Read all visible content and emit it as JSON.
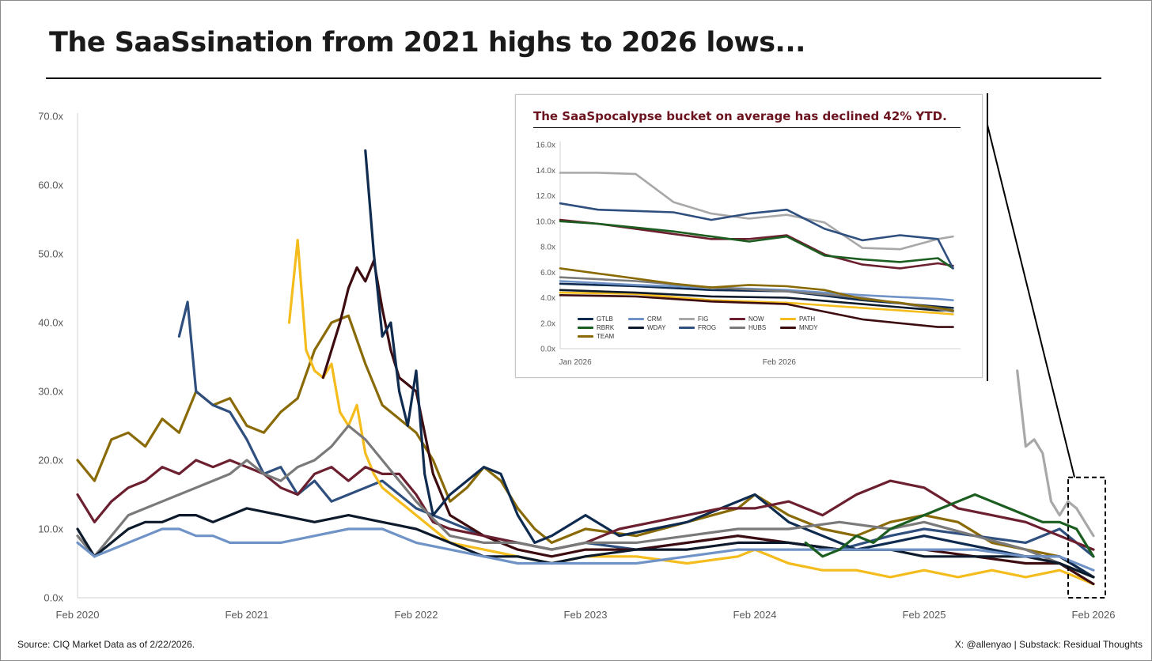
{
  "title": "The SaaSsination from 2021 highs to 2026 lows...",
  "source": "Source: CIQ Market Data as of 2/22/2026.",
  "credit": "X: @allenyao | Substack: Residual Thoughts",
  "colors": {
    "GTLB": "#0f2b4f",
    "CRM": "#6f93c6",
    "FIG": "#a8a8a8",
    "NOW": "#6b1f2f",
    "PATH": "#f4bc1c",
    "RBRK": "#1b5e20",
    "WDAY": "#0c1a2b",
    "FROG": "#2f4f7f",
    "HUBS": "#7a7a7a",
    "MNDY": "#3d0c10",
    "TEAM": "#8a6a05"
  },
  "chart_data": [
    {
      "type": "line",
      "title": "The SaaSsination from 2021 highs to 2026 lows...",
      "xlabel": "",
      "ylabel": "",
      "x_ticks": [
        "Feb 2020",
        "Feb 2021",
        "Feb 2022",
        "Feb 2023",
        "Feb 2024",
        "Feb 2025",
        "Feb 2026"
      ],
      "y_ticks": [
        "0.0x",
        "10.0x",
        "20.0x",
        "30.0x",
        "40.0x",
        "50.0x",
        "60.0x",
        "70.0x"
      ],
      "ylim": [
        0,
        70
      ],
      "xlim": [
        2020.0,
        2026.0
      ],
      "grid": false,
      "legend": "none",
      "series": [
        {
          "name": "TEAM",
          "x": [
            2020.0,
            2020.1,
            2020.2,
            2020.3,
            2020.4,
            2020.5,
            2020.6,
            2020.7,
            2020.8,
            2020.9,
            2021.0,
            2021.1,
            2021.2,
            2021.3,
            2021.4,
            2021.5,
            2021.6,
            2021.7,
            2021.8,
            2021.9,
            2022.0,
            2022.1,
            2022.2,
            2022.3,
            2022.4,
            2022.5,
            2022.6,
            2022.7,
            2022.8,
            2023.0,
            2023.3,
            2023.6,
            2023.9,
            2024.0,
            2024.2,
            2024.4,
            2024.6,
            2024.8,
            2025.0,
            2025.2,
            2025.4,
            2025.6,
            2025.8,
            2026.0
          ],
          "y": [
            20,
            17,
            23,
            24,
            22,
            26,
            24,
            30,
            28,
            29,
            25,
            24,
            27,
            29,
            36,
            40,
            41,
            34,
            28,
            26,
            24,
            20,
            14,
            16,
            19,
            17,
            13,
            10,
            8,
            10,
            9,
            11,
            13,
            15,
            12,
            10,
            9,
            11,
            12,
            11,
            8,
            7,
            6,
            3
          ]
        },
        {
          "name": "FROG",
          "x": [
            2020.6,
            2020.65,
            2020.7,
            2020.8,
            2020.9,
            2021.0,
            2021.1,
            2021.2,
            2021.3,
            2021.4,
            2021.5,
            2021.6,
            2021.7,
            2021.8,
            2021.9,
            2022.0,
            2022.2,
            2022.4,
            2022.6,
            2022.8,
            2023.0,
            2023.3,
            2023.6,
            2023.9,
            2024.2,
            2024.5,
            2024.8,
            2025.0,
            2025.3,
            2025.6,
            2025.8,
            2026.0
          ],
          "y": [
            38,
            43,
            30,
            28,
            27,
            23,
            18,
            19,
            15,
            17,
            14,
            15,
            16,
            17,
            15,
            13,
            11,
            9,
            8,
            7,
            8,
            7,
            8,
            9,
            8,
            7,
            9,
            10,
            9,
            8,
            10,
            6
          ]
        },
        {
          "name": "PATH",
          "x": [
            2021.25,
            2021.3,
            2021.35,
            2021.4,
            2021.45,
            2021.5,
            2021.55,
            2021.6,
            2021.65,
            2021.7,
            2021.75,
            2021.8,
            2021.9,
            2022.0,
            2022.2,
            2022.4,
            2022.6,
            2022.8,
            2023.0,
            2023.3,
            2023.6,
            2023.9,
            2024.0,
            2024.2,
            2024.4,
            2024.6,
            2024.8,
            2025.0,
            2025.2,
            2025.4,
            2025.6,
            2025.8,
            2026.0
          ],
          "y": [
            40,
            52,
            36,
            33,
            32,
            34,
            27,
            25,
            28,
            21,
            18,
            16,
            14,
            12,
            8,
            7,
            6,
            5,
            6,
            6,
            5,
            6,
            7,
            5,
            4,
            4,
            3,
            4,
            3,
            4,
            3,
            4,
            2
          ]
        },
        {
          "name": "MNDY",
          "x": [
            2021.45,
            2021.5,
            2021.55,
            2021.6,
            2021.65,
            2021.7,
            2021.75,
            2021.8,
            2021.85,
            2021.9,
            2022.0,
            2022.1,
            2022.2,
            2022.4,
            2022.6,
            2022.8,
            2023.0,
            2023.3,
            2023.6,
            2023.9,
            2024.2,
            2024.5,
            2024.8,
            2025.0,
            2025.3,
            2025.6,
            2025.8,
            2026.0
          ],
          "y": [
            32,
            36,
            40,
            45,
            48,
            46,
            49,
            42,
            36,
            32,
            30,
            18,
            12,
            9,
            7,
            6,
            7,
            7,
            8,
            9,
            8,
            7,
            7,
            7,
            6,
            5,
            5,
            2
          ]
        },
        {
          "name": "GTLB",
          "x": [
            2021.7,
            2021.75,
            2021.8,
            2021.85,
            2021.9,
            2021.95,
            2022.0,
            2022.05,
            2022.1,
            2022.2,
            2022.3,
            2022.4,
            2022.5,
            2022.6,
            2022.7,
            2022.8,
            2023.0,
            2023.2,
            2023.4,
            2023.6,
            2023.8,
            2024.0,
            2024.2,
            2024.4,
            2024.6,
            2024.8,
            2025.0,
            2025.2,
            2025.4,
            2025.6,
            2025.8,
            2026.0
          ],
          "y": [
            65,
            50,
            38,
            40,
            30,
            25,
            33,
            18,
            12,
            15,
            17,
            19,
            18,
            12,
            8,
            9,
            12,
            9,
            10,
            11,
            13,
            15,
            11,
            9,
            7,
            8,
            9,
            8,
            7,
            6,
            6,
            3
          ]
        },
        {
          "name": "NOW",
          "x": [
            2020.0,
            2020.1,
            2020.2,
            2020.3,
            2020.4,
            2020.5,
            2020.6,
            2020.7,
            2020.8,
            2020.9,
            2021.0,
            2021.1,
            2021.2,
            2021.3,
            2021.4,
            2021.5,
            2021.6,
            2021.7,
            2021.8,
            2021.9,
            2022.0,
            2022.1,
            2022.2,
            2022.4,
            2022.6,
            2022.8,
            2023.0,
            2023.2,
            2023.4,
            2023.6,
            2023.8,
            2024.0,
            2024.2,
            2024.4,
            2024.6,
            2024.8,
            2025.0,
            2025.2,
            2025.4,
            2025.6,
            2025.8,
            2026.0
          ],
          "y": [
            15,
            11,
            14,
            16,
            17,
            19,
            18,
            20,
            19,
            20,
            19,
            18,
            16,
            15,
            18,
            19,
            17,
            19,
            18,
            18,
            15,
            11,
            10,
            9,
            8,
            7,
            8,
            10,
            11,
            12,
            13,
            13,
            14,
            12,
            15,
            17,
            16,
            13,
            12,
            11,
            9,
            7
          ]
        },
        {
          "name": "HUBS",
          "x": [
            2020.0,
            2020.1,
            2020.2,
            2020.3,
            2020.4,
            2020.5,
            2020.6,
            2020.7,
            2020.8,
            2020.9,
            2021.0,
            2021.1,
            2021.2,
            2021.3,
            2021.4,
            2021.5,
            2021.6,
            2021.7,
            2021.8,
            2021.9,
            2022.0,
            2022.2,
            2022.4,
            2022.6,
            2022.8,
            2023.0,
            2023.3,
            2023.6,
            2023.9,
            2024.2,
            2024.5,
            2024.8,
            2025.0,
            2025.3,
            2025.6,
            2025.8,
            2026.0
          ],
          "y": [
            9,
            6,
            9,
            12,
            13,
            14,
            15,
            16,
            17,
            18,
            20,
            18,
            17,
            19,
            20,
            22,
            25,
            23,
            20,
            17,
            14,
            9,
            8,
            8,
            7,
            8,
            8,
            9,
            10,
            10,
            11,
            10,
            11,
            9,
            7,
            5,
            3
          ]
        },
        {
          "name": "WDAY",
          "x": [
            2020.0,
            2020.1,
            2020.2,
            2020.3,
            2020.4,
            2020.5,
            2020.6,
            2020.7,
            2020.8,
            2020.9,
            2021.0,
            2021.2,
            2021.4,
            2021.6,
            2021.8,
            2022.0,
            2022.2,
            2022.4,
            2022.6,
            2022.8,
            2023.0,
            2023.3,
            2023.6,
            2023.9,
            2024.2,
            2024.5,
            2024.8,
            2025.0,
            2025.3,
            2025.6,
            2025.8,
            2026.0
          ],
          "y": [
            10,
            6,
            8,
            10,
            11,
            11,
            12,
            12,
            11,
            12,
            13,
            12,
            11,
            12,
            11,
            10,
            8,
            6,
            6,
            5,
            6,
            7,
            7,
            8,
            8,
            7,
            7,
            6,
            6,
            6,
            5,
            3
          ]
        },
        {
          "name": "CRM",
          "x": [
            2020.0,
            2020.1,
            2020.2,
            2020.3,
            2020.4,
            2020.5,
            2020.6,
            2020.7,
            2020.8,
            2020.9,
            2021.0,
            2021.2,
            2021.4,
            2021.6,
            2021.8,
            2022.0,
            2022.2,
            2022.4,
            2022.6,
            2022.8,
            2023.0,
            2023.3,
            2023.6,
            2023.9,
            2024.2,
            2024.5,
            2024.8,
            2025.0,
            2025.3,
            2025.6,
            2025.8,
            2026.0
          ],
          "y": [
            8,
            6,
            7,
            8,
            9,
            10,
            10,
            9,
            9,
            8,
            8,
            8,
            9,
            10,
            10,
            8,
            7,
            6,
            5,
            5,
            5,
            5,
            6,
            7,
            7,
            7,
            7,
            7,
            7,
            6,
            6,
            4
          ]
        },
        {
          "name": "RBRK",
          "x": [
            2024.3,
            2024.4,
            2024.5,
            2024.6,
            2024.7,
            2024.8,
            2024.9,
            2025.0,
            2025.1,
            2025.2,
            2025.3,
            2025.4,
            2025.5,
            2025.6,
            2025.7,
            2025.8,
            2025.9,
            2026.0
          ],
          "y": [
            8,
            6,
            7,
            9,
            8,
            10,
            11,
            12,
            13,
            14,
            15,
            14,
            13,
            12,
            11,
            11,
            10,
            6
          ]
        },
        {
          "name": "FIG",
          "x": [
            2025.55,
            2025.6,
            2025.65,
            2025.7,
            2025.75,
            2025.8,
            2025.85,
            2025.9,
            2025.95,
            2026.0
          ],
          "y": [
            33,
            22,
            23,
            21,
            14,
            12,
            14,
            13,
            11,
            9
          ]
        }
      ]
    },
    {
      "type": "line",
      "title": "The SaaSpocalypse bucket on average has declined 42% YTD.",
      "xlabel": "",
      "ylabel": "",
      "x_ticks": [
        "Jan 2026",
        "Feb 2026"
      ],
      "y_ticks": [
        "0.0x",
        "2.0x",
        "4.0x",
        "6.0x",
        "8.0x",
        "10.0x",
        "12.0x",
        "14.0x",
        "16.0x"
      ],
      "ylim": [
        0,
        16
      ],
      "xlim": [
        0,
        53
      ],
      "grid": false,
      "legend": "bottom-left",
      "series": [
        {
          "name": "GTLB",
          "x": [
            0,
            10,
            20,
            30,
            40,
            50,
            52
          ],
          "y": [
            5.1,
            4.9,
            4.6,
            4.5,
            3.8,
            3.3,
            3.2
          ]
        },
        {
          "name": "CRM",
          "x": [
            0,
            10,
            20,
            30,
            40,
            50,
            52
          ],
          "y": [
            5.3,
            5.0,
            4.8,
            4.6,
            4.2,
            3.9,
            3.8
          ]
        },
        {
          "name": "FIG",
          "x": [
            0,
            5,
            10,
            15,
            20,
            25,
            30,
            35,
            40,
            45,
            50,
            52
          ],
          "y": [
            13.8,
            13.8,
            13.7,
            11.5,
            10.6,
            10.2,
            10.5,
            9.9,
            7.9,
            7.8,
            8.6,
            8.8
          ]
        },
        {
          "name": "NOW",
          "x": [
            0,
            5,
            10,
            15,
            20,
            25,
            30,
            35,
            40,
            45,
            50,
            52
          ],
          "y": [
            10.1,
            9.8,
            9.4,
            9.0,
            8.6,
            8.6,
            8.9,
            7.4,
            6.6,
            6.3,
            6.7,
            6.5
          ]
        },
        {
          "name": "PATH",
          "x": [
            0,
            10,
            20,
            30,
            40,
            50,
            52
          ],
          "y": [
            4.4,
            4.3,
            3.8,
            3.6,
            3.2,
            2.8,
            2.7
          ]
        },
        {
          "name": "RBRK",
          "x": [
            0,
            5,
            10,
            15,
            20,
            25,
            30,
            35,
            40,
            45,
            50,
            52
          ],
          "y": [
            10.0,
            9.8,
            9.5,
            9.2,
            8.8,
            8.4,
            8.8,
            7.3,
            7.0,
            6.8,
            7.1,
            6.3
          ]
        },
        {
          "name": "WDAY",
          "x": [
            0,
            10,
            20,
            30,
            40,
            50,
            52
          ],
          "y": [
            4.6,
            4.4,
            4.1,
            4.0,
            3.5,
            3.0,
            3.0
          ]
        },
        {
          "name": "FROG",
          "x": [
            0,
            5,
            10,
            15,
            20,
            25,
            30,
            35,
            40,
            45,
            50,
            52
          ],
          "y": [
            11.4,
            10.9,
            10.8,
            10.7,
            10.1,
            10.6,
            10.9,
            9.4,
            8.5,
            8.9,
            8.6,
            6.3
          ]
        },
        {
          "name": "HUBS",
          "x": [
            0,
            10,
            20,
            30,
            40,
            50,
            52
          ],
          "y": [
            5.6,
            5.3,
            4.8,
            4.5,
            4.0,
            3.1,
            2.9
          ]
        },
        {
          "name": "MNDY",
          "x": [
            0,
            10,
            20,
            30,
            40,
            50,
            52
          ],
          "y": [
            4.2,
            4.1,
            3.7,
            3.5,
            2.3,
            1.7,
            1.7
          ]
        },
        {
          "name": "TEAM",
          "x": [
            0,
            5,
            10,
            15,
            20,
            25,
            30,
            35,
            40,
            45,
            50,
            52
          ],
          "y": [
            6.3,
            5.9,
            5.5,
            5.1,
            4.8,
            5.0,
            4.9,
            4.6,
            3.9,
            3.6,
            3.2,
            3.0
          ]
        }
      ]
    }
  ]
}
